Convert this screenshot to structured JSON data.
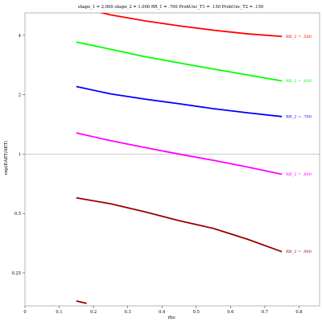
{
  "chart_data": {
    "type": "line",
    "title": "shape_1 = 2.000  shape_2 = 1.000  RR_1 = .700  ProbUnc_T1 = .150  ProbUnc_T2 = .150",
    "xlabel": "rho",
    "ylabel": "exp(EAET/AET)",
    "xlim": [
      0,
      0.86
    ],
    "ylim": [
      0.17,
      5.2
    ],
    "y_scale": "log",
    "x_ticks": [
      0,
      0.1,
      0.2,
      0.3,
      0.4,
      0.5,
      0.6,
      0.7,
      0.8
    ],
    "x_tick_labels": [
      "0",
      "0.1",
      "0.2",
      "0.3",
      "0.4",
      "0.5",
      "0.6",
      "0.7",
      "0.8"
    ],
    "y_ticks": [
      0.25,
      0.5,
      1,
      2,
      4
    ],
    "y_tick_labels": [
      "0.25",
      "0.5",
      "1",
      "2",
      "4"
    ],
    "reference_line_y": 1,
    "grid": false,
    "series": [
      {
        "name": "RR_2 = .500",
        "color": "#ff0000",
        "x": [
          0.15,
          0.25,
          0.35,
          0.45,
          0.55,
          0.65,
          0.75
        ],
        "y": [
          5.6,
          5.08,
          4.74,
          4.47,
          4.25,
          4.07,
          3.95
        ]
      },
      {
        "name": "RR_2 = .600",
        "color": "#00ff00",
        "x": [
          0.15,
          0.25,
          0.35,
          0.45,
          0.55,
          0.65,
          0.75
        ],
        "y": [
          3.7,
          3.4,
          3.12,
          2.9,
          2.7,
          2.52,
          2.35
        ]
      },
      {
        "name": "RR_2 = .700",
        "color": "#0000ff",
        "x": [
          0.15,
          0.25,
          0.35,
          0.45,
          0.55,
          0.65,
          0.75
        ],
        "y": [
          2.2,
          2.02,
          1.9,
          1.8,
          1.7,
          1.62,
          1.55
        ]
      },
      {
        "name": "RR_2 = .800",
        "color": "#ff00ff",
        "x": [
          0.15,
          0.25,
          0.35,
          0.45,
          0.55,
          0.65,
          0.75
        ],
        "y": [
          1.28,
          1.17,
          1.08,
          1.0,
          0.93,
          0.86,
          0.79
        ]
      },
      {
        "name": "RR_2 = .900",
        "color": "#990000",
        "x": [
          0.15,
          0.25,
          0.35,
          0.45,
          0.55,
          0.65,
          0.75
        ],
        "y": [
          0.6,
          0.56,
          0.51,
          0.46,
          0.42,
          0.37,
          0.32
        ]
      },
      {
        "name": "",
        "color": "#990000",
        "x": [
          0.15,
          0.18
        ],
        "y": [
          0.18,
          0.175
        ]
      }
    ]
  }
}
